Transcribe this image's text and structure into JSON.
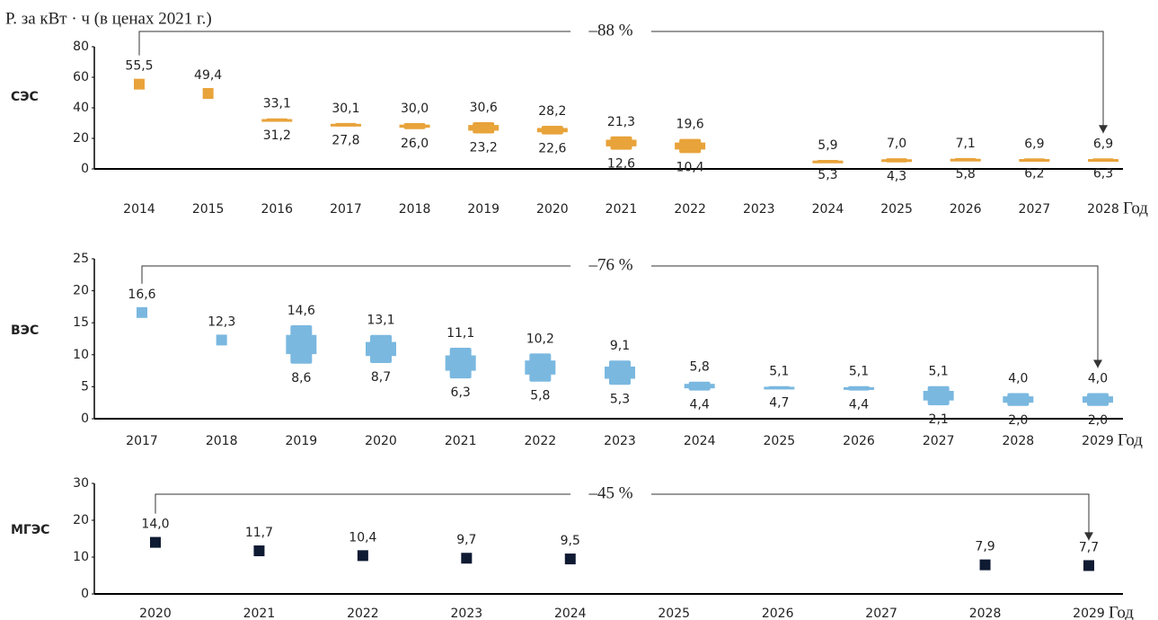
{
  "chart_data": [
    {
      "type": "range",
      "ylabel": "Р. за кВт · ч (в ценах 2021 г.)",
      "title": "СЭС",
      "xlabel": "Год",
      "annotation": "–88 %",
      "color": "#e8a33a",
      "categories": [
        "2014",
        "2015",
        "2016",
        "2017",
        "2018",
        "2019",
        "2020",
        "2021",
        "2022",
        "2023",
        "2024",
        "2025",
        "2026",
        "2027",
        "2028"
      ],
      "high": [
        55.5,
        49.4,
        33.1,
        30.1,
        30.0,
        30.6,
        28.2,
        21.3,
        19.6,
        null,
        5.9,
        7.0,
        7.1,
        6.9,
        6.9
      ],
      "high_labels": [
        "55,5",
        "49,4",
        "33,1",
        "30,1",
        "30,0",
        "30,6",
        "28,2",
        "21,3",
        "19,6",
        null,
        "5,9",
        "7,0",
        "7,1",
        "6,9",
        "6,9"
      ],
      "low": [
        null,
        null,
        31.2,
        27.8,
        26.0,
        23.2,
        22.6,
        12.6,
        10.4,
        null,
        5.3,
        4.3,
        5.8,
        6.2,
        6.3
      ],
      "low_labels": [
        null,
        null,
        "31,2",
        "27,8",
        "26,0",
        "23,2",
        "22,6",
        "12,6",
        "10,4",
        null,
        "5,3",
        "4,3",
        "5,8",
        "6,2",
        "6,3"
      ],
      "ylim": [
        0,
        80
      ],
      "yticks": [
        0,
        20,
        40,
        60,
        80
      ]
    },
    {
      "type": "range",
      "title": "ВЭС",
      "xlabel": "Год",
      "annotation": "–76 %",
      "color": "#7ab8e0",
      "categories": [
        "2017",
        "2018",
        "2019",
        "2020",
        "2021",
        "2022",
        "2023",
        "2024",
        "2025",
        "2026",
        "2027",
        "2028",
        "2029"
      ],
      "high": [
        16.6,
        12.3,
        14.6,
        13.1,
        11.1,
        10.2,
        9.1,
        5.8,
        5.1,
        5.1,
        5.1,
        4.0,
        4.0
      ],
      "high_labels": [
        "16,6",
        "12,3",
        "14,6",
        "13,1",
        "11,1",
        "10,2",
        "9,1",
        "5,8",
        "5,1",
        "5,1",
        "5,1",
        "4,0",
        "4,0"
      ],
      "low": [
        null,
        null,
        8.6,
        8.7,
        6.3,
        5.8,
        5.3,
        4.4,
        4.7,
        4.4,
        2.1,
        2.0,
        2.0
      ],
      "low_labels": [
        null,
        null,
        "8,6",
        "8,7",
        "6,3",
        "5,8",
        "5,3",
        "4,4",
        "4,7",
        "4,4",
        "2,1",
        "2,0",
        "2,0"
      ],
      "ylim": [
        0,
        25
      ],
      "yticks": [
        0,
        5,
        10,
        15,
        20,
        25
      ]
    },
    {
      "type": "range",
      "title": "МГЭС",
      "xlabel": "Год",
      "annotation": "–45 %",
      "color": "#0f1a33",
      "categories": [
        "2020",
        "2021",
        "2022",
        "2023",
        "2024",
        "2025",
        "2026",
        "2027",
        "2028",
        "2029"
      ],
      "high": [
        14.0,
        11.7,
        10.4,
        9.7,
        9.5,
        null,
        null,
        null,
        7.9,
        7.7
      ],
      "high_labels": [
        "14,0",
        "11,7",
        "10,4",
        "9,7",
        "9,5",
        null,
        null,
        null,
        "7,9",
        "7,7"
      ],
      "ylim": [
        0,
        30
      ],
      "yticks": [
        0,
        10,
        20,
        30
      ]
    }
  ]
}
